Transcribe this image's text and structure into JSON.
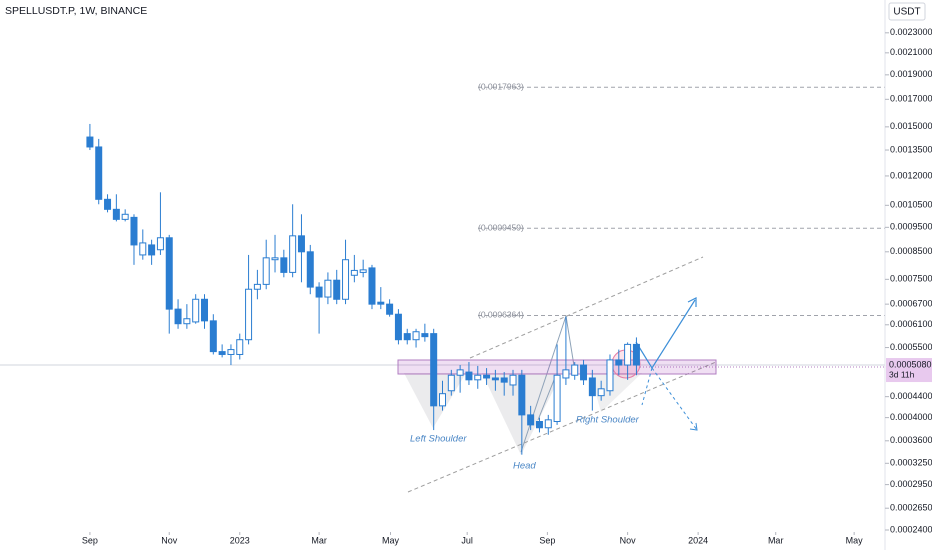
{
  "chart_data": {
    "type": "candlestick",
    "title": "SPELLUSDT.P, 1W, BINANCE",
    "currency": "USDT",
    "log_scale": true,
    "up_color": "#ffffff",
    "down_color": "#2a7dd1",
    "wick_color": "#2a7dd1",
    "x": [
      0,
      1,
      2,
      3,
      4,
      5,
      6,
      7,
      8,
      9,
      10,
      11,
      12,
      13,
      14,
      15,
      16,
      17,
      18,
      19,
      20,
      21,
      22,
      23,
      24,
      25,
      26,
      27,
      28,
      29,
      30,
      31,
      32,
      33,
      34,
      35,
      36,
      37,
      38,
      39,
      40,
      41,
      42,
      43,
      44,
      45,
      46,
      47,
      48,
      49,
      50,
      51,
      52,
      53,
      54,
      55,
      56,
      57,
      58,
      59,
      60,
      61,
      62
    ],
    "open": [
      0.001432,
      0.001369,
      0.001079,
      0.001031,
      0.000985,
      0.000994,
      0.000838,
      0.000877,
      0.000858,
      0.000906,
      0.000655,
      0.000613,
      0.000618,
      0.000685,
      0.000621,
      0.00054,
      0.000533,
      0.000533,
      0.00057,
      0.000717,
      0.000733,
      0.00082,
      0.000827,
      0.000774,
      0.000914,
      0.00085,
      0.000724,
      0.000692,
      0.000747,
      0.000685,
      0.000764,
      0.000774,
      0.00079,
      0.000676,
      0.00067,
      0.00064,
      0.000586,
      0.00057,
      0.000586,
      0.000586,
      0.000422,
      0.000452,
      0.000485,
      0.000492,
      0.000475,
      0.000485,
      0.000479,
      0.000479,
      0.000464,
      0.000485,
      0.000405,
      0.000393,
      0.000382,
      0.000393,
      0.000479,
      0.000485,
      0.000508,
      0.000479,
      0.000442,
      0.000452,
      0.00052,
      0.000508,
      0.000558
    ],
    "high": [
      0.00152,
      0.00142,
      0.001104,
      0.001104,
      0.001031,
      0.001008,
      0.000941,
      0.000898,
      0.001114,
      0.000918,
      0.000685,
      0.00067,
      0.000701,
      0.000701,
      0.00064,
      0.000558,
      0.000558,
      0.000586,
      0.000838,
      0.000783,
      0.000898,
      0.000918,
      0.000858,
      0.001055,
      0.001008,
      0.000877,
      0.00074,
      0.000774,
      0.000783,
      0.000898,
      0.000838,
      0.00082,
      0.000801,
      0.000724,
      0.000685,
      0.000655,
      0.000599,
      0.000599,
      0.000613,
      0.000599,
      0.000473,
      0.000497,
      0.000508,
      0.000515,
      0.000506,
      0.000501,
      0.000497,
      0.000492,
      0.000497,
      0.000497,
      0.000422,
      0.0004,
      0.000405,
      0.000558,
      0.000633,
      0.000515,
      0.00052,
      0.000497,
      0.000473,
      0.000533,
      0.000545,
      0.000563,
      0.000576
    ],
    "low": [
      0.00135,
      0.001055,
      0.001017,
      0.000976,
      0.000976,
      0.000801,
      0.00082,
      0.000801,
      0.000838,
      0.000586,
      0.000599,
      0.000599,
      0.000613,
      0.000599,
      0.000533,
      0.000526,
      0.000508,
      0.000521,
      0.000558,
      0.000685,
      0.000717,
      0.000774,
      0.000757,
      0.000757,
      0.00074,
      0.000701,
      0.000586,
      0.00067,
      0.00067,
      0.00067,
      0.00074,
      0.000757,
      0.000655,
      0.000655,
      0.000633,
      0.000558,
      0.000558,
      0.00055,
      0.000565,
      0.000378,
      0.000413,
      0.000442,
      0.000448,
      0.000464,
      0.000456,
      0.000464,
      0.000452,
      0.000442,
      0.000442,
      0.000338,
      0.000378,
      0.000374,
      0.00037,
      0.000387,
      0.000464,
      0.000475,
      0.000464,
      0.000413,
      0.000432,
      0.000442,
      0.000485,
      0.000475,
      0.000485
    ],
    "close": [
      0.001369,
      0.001079,
      0.001031,
      0.000985,
      0.001008,
      0.000877,
      0.000885,
      0.000838,
      0.000906,
      0.000655,
      0.000613,
      0.000627,
      0.000685,
      0.000621,
      0.00054,
      0.000533,
      0.000545,
      0.00057,
      0.000717,
      0.000733,
      0.000827,
      0.000827,
      0.000774,
      0.000914,
      0.00085,
      0.000724,
      0.000692,
      0.000747,
      0.000685,
      0.00082,
      0.000781,
      0.000783,
      0.00067,
      0.00067,
      0.00064,
      0.00057,
      0.00057,
      0.000591,
      0.000578,
      0.000422,
      0.000446,
      0.000485,
      0.000497,
      0.000475,
      0.000485,
      0.000479,
      0.000475,
      0.00047,
      0.000485,
      0.000405,
      0.000387,
      0.000382,
      0.000396,
      0.000485,
      0.000497,
      0.000508,
      0.000475,
      0.000442,
      0.000456,
      0.00052,
      0.000508,
      0.000558,
      0.000508
    ],
    "xlim": [
      -10.2,
      90.2
    ],
    "xticks": [
      {
        "value": 0,
        "label": "Sep"
      },
      {
        "value": 9.0,
        "label": "Nov"
      },
      {
        "value": 17.0,
        "label": "2023"
      },
      {
        "value": 26.0,
        "label": "Mar"
      },
      {
        "value": 34.1,
        "label": "May"
      },
      {
        "value": 42.8,
        "label": "Jul"
      },
      {
        "value": 51.9,
        "label": "Sep"
      },
      {
        "value": 61.0,
        "label": "Nov"
      },
      {
        "value": 69.0,
        "label": "2024"
      },
      {
        "value": 77.8,
        "label": "Mar"
      },
      {
        "value": 86.7,
        "label": "May"
      }
    ],
    "ylim": [
      0.00024,
      0.00267
    ],
    "yticks": [
      {
        "value": 0.0023,
        "label": "0.0023000"
      },
      {
        "value": 0.0021,
        "label": "0.0021000"
      },
      {
        "value": 0.0019,
        "label": "0.0019000"
      },
      {
        "value": 0.0017,
        "label": "0.0017000"
      },
      {
        "value": 0.0015,
        "label": "0.0015000"
      },
      {
        "value": 0.00135,
        "label": "0.0013500"
      },
      {
        "value": 0.0012,
        "label": "0.0012000"
      },
      {
        "value": 0.00105,
        "label": "0.0010500"
      },
      {
        "value": 0.00095,
        "label": "0.0009500"
      },
      {
        "value": 0.00085,
        "label": "0.0008500"
      },
      {
        "value": 0.00075,
        "label": "0.0007500"
      },
      {
        "value": 0.00067,
        "label": "0.0006700"
      },
      {
        "value": 0.00061,
        "label": "0.0006100"
      },
      {
        "value": 0.00055,
        "label": "0.0005500"
      },
      {
        "value": 0.00044,
        "label": "0.0004400"
      },
      {
        "value": 0.0004,
        "label": "0.0004000"
      },
      {
        "value": 0.00036,
        "label": "0.0003600"
      },
      {
        "value": 0.000325,
        "label": "0.0003250"
      },
      {
        "value": 0.000295,
        "label": "0.0002950"
      },
      {
        "value": 0.000265,
        "label": "0.0002650"
      },
      {
        "value": 0.00024,
        "label": "0.0002400"
      }
    ],
    "levels": [
      {
        "value": 0.0017963,
        "label": "(0.0017963)"
      },
      {
        "value": 0.0009459,
        "label": "(0.0009459)"
      },
      {
        "value": 0.0006364,
        "label": "(0.0006364)"
      }
    ],
    "last_price": {
      "value": 0.000508,
      "label": "0.0005080"
    },
    "countdown": "3d 11h",
    "annotations": [
      "Left Shoulder",
      "Head",
      "Right Shoulder"
    ]
  }
}
